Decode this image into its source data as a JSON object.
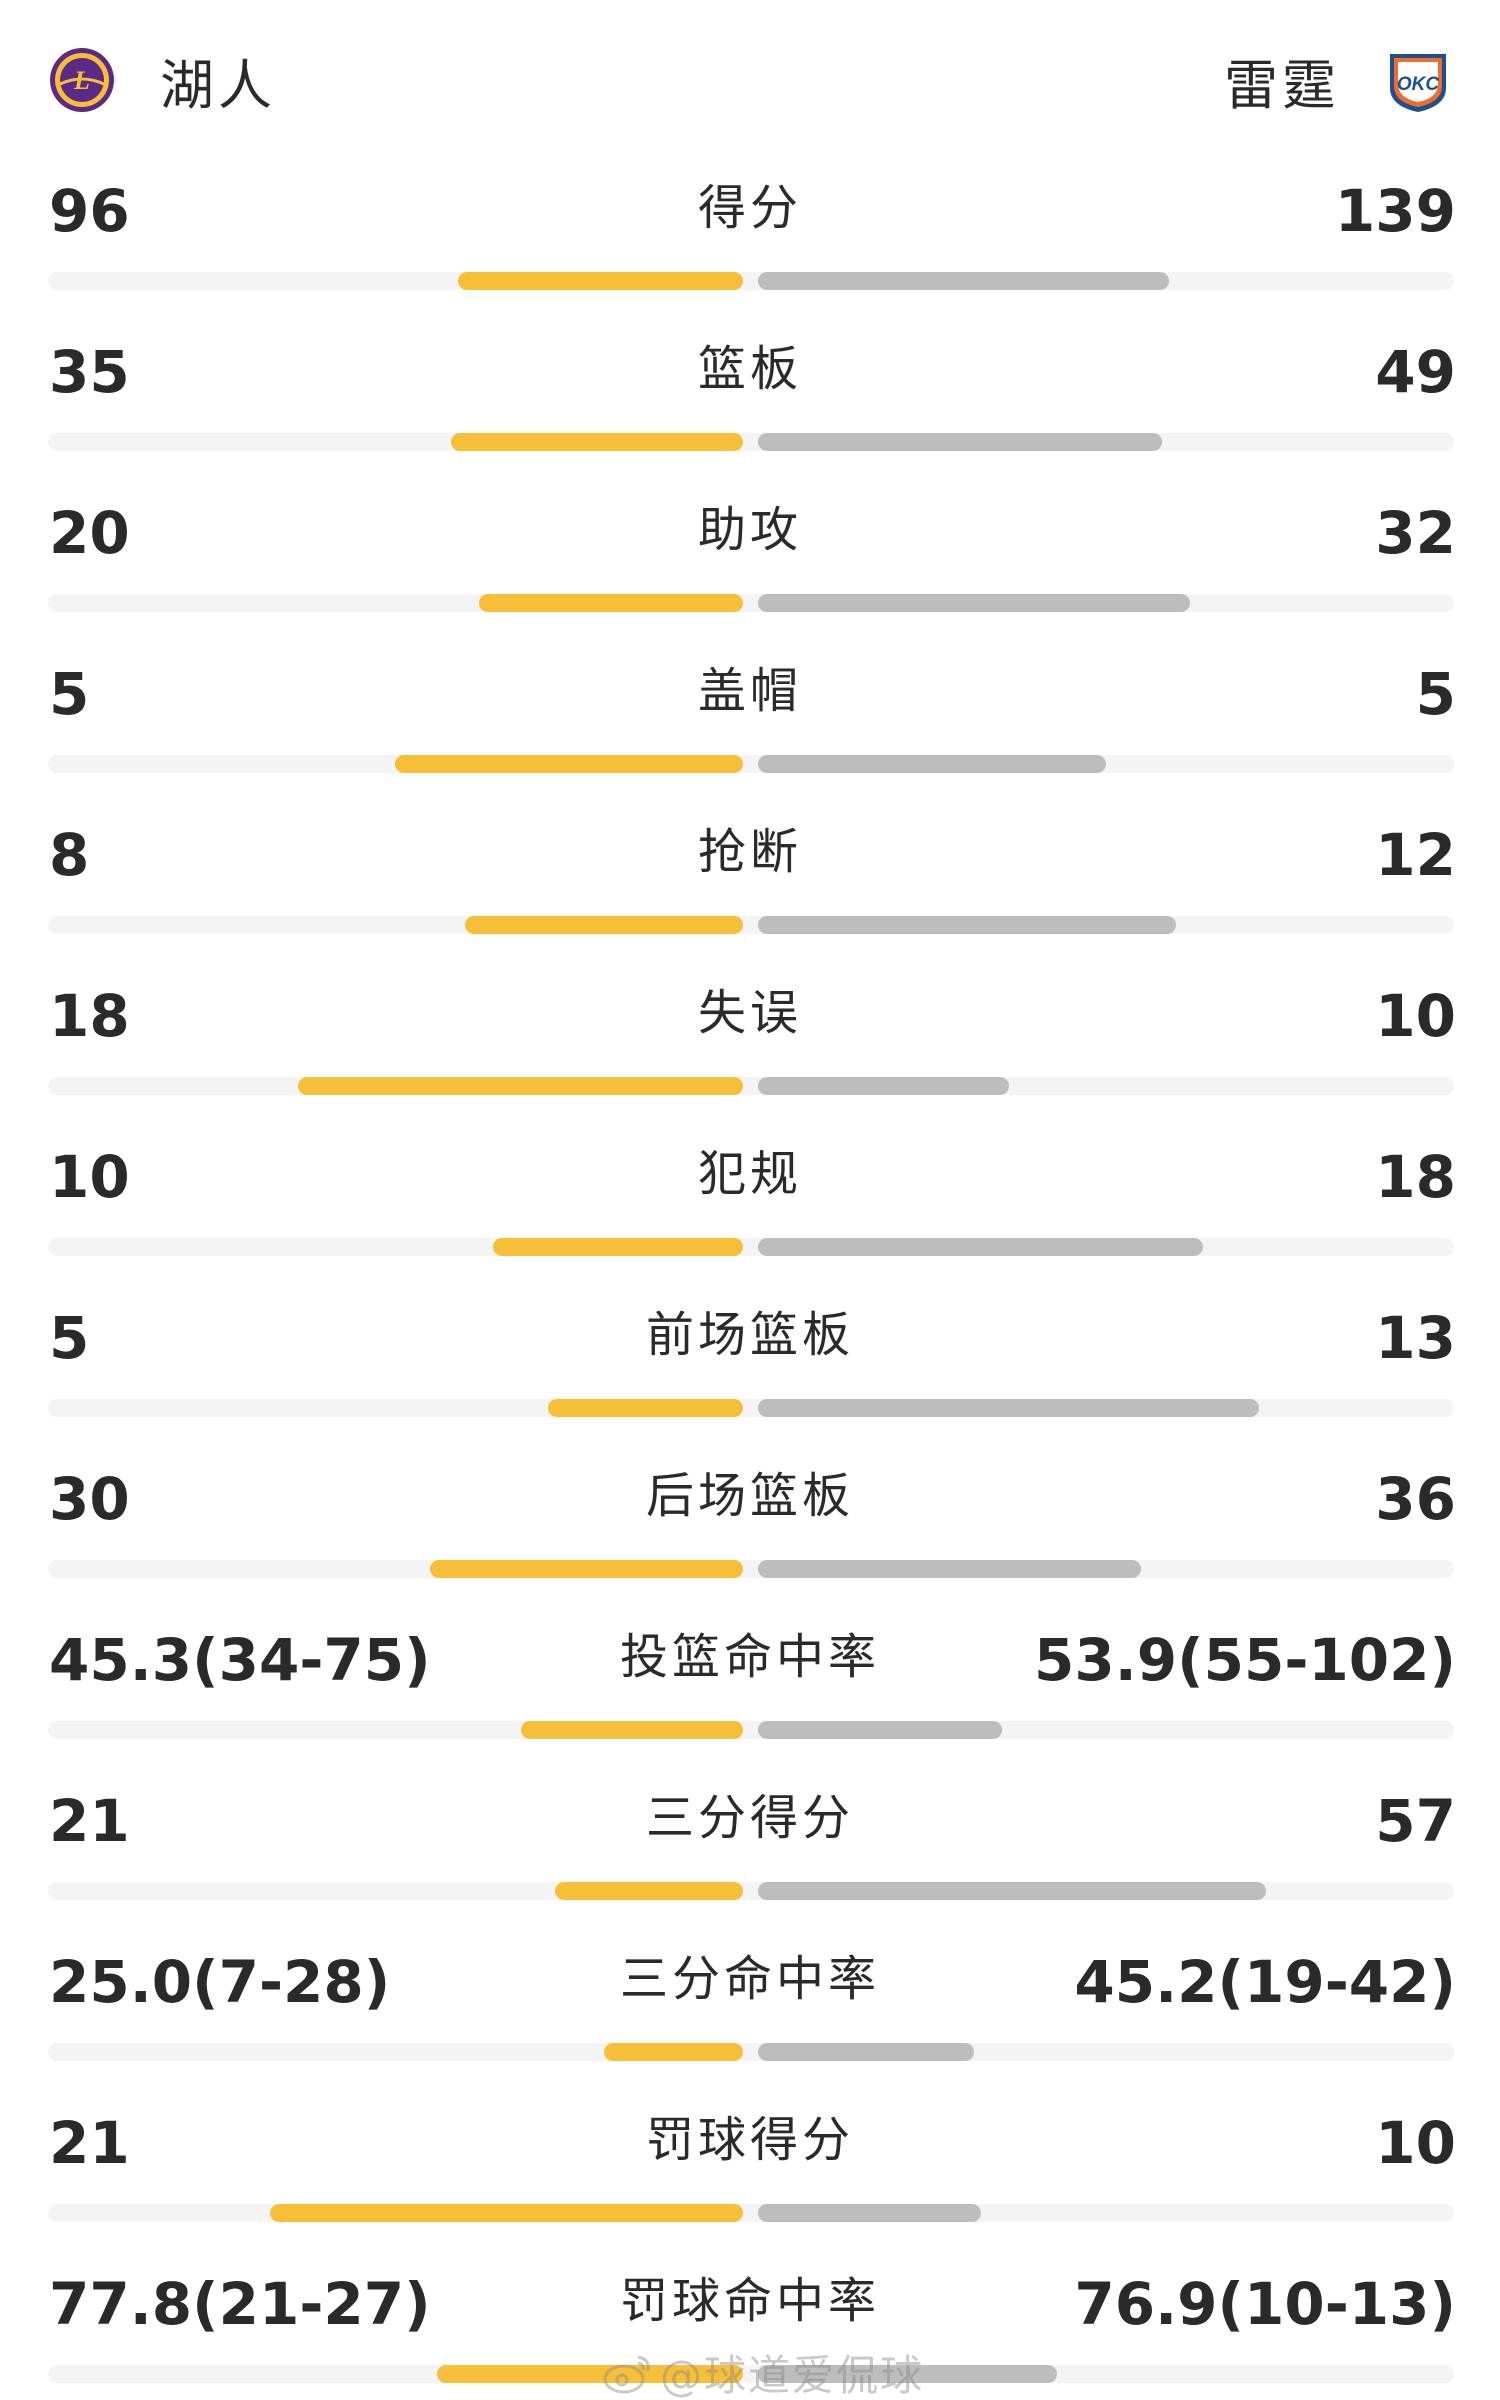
{
  "header": {
    "left_team": {
      "name": "湖人",
      "logo_icon": "lakers-logo-icon"
    },
    "right_team": {
      "name": "雷霆",
      "logo_icon": "okc-logo-icon"
    }
  },
  "colors": {
    "left_bar": "#f7be38",
    "right_bar": "#bdbdbd",
    "track": "#f4f4f4",
    "text": "#2a2a2a"
  },
  "stats": [
    {
      "label": "得分",
      "left": "96",
      "right": "139",
      "left_fill": 0.41,
      "right_fill": 0.59
    },
    {
      "label": "篮板",
      "left": "35",
      "right": "49",
      "left_fill": 0.42,
      "right_fill": 0.58
    },
    {
      "label": "助攻",
      "left": "20",
      "right": "32",
      "left_fill": 0.38,
      "right_fill": 0.62
    },
    {
      "label": "盖帽",
      "left": "5",
      "right": "5",
      "left_fill": 0.5,
      "right_fill": 0.5
    },
    {
      "label": "抢断",
      "left": "8",
      "right": "12",
      "left_fill": 0.4,
      "right_fill": 0.6
    },
    {
      "label": "失误",
      "left": "18",
      "right": "10",
      "left_fill": 0.64,
      "right_fill": 0.36
    },
    {
      "label": "犯规",
      "left": "10",
      "right": "18",
      "left_fill": 0.36,
      "right_fill": 0.64
    },
    {
      "label": "前场篮板",
      "left": "5",
      "right": "13",
      "left_fill": 0.28,
      "right_fill": 0.72
    },
    {
      "label": "后场篮板",
      "left": "30",
      "right": "36",
      "left_fill": 0.45,
      "right_fill": 0.55
    },
    {
      "label": "投篮命中率",
      "left": "45.3(34-75)",
      "right": "53.9(55-102)",
      "left_fill": 0.32,
      "right_fill": 0.35
    },
    {
      "label": "三分得分",
      "left": "21",
      "right": "57",
      "left_fill": 0.27,
      "right_fill": 0.73
    },
    {
      "label": "三分命中率",
      "left": "25.0(7-28)",
      "right": "45.2(19-42)",
      "left_fill": 0.2,
      "right_fill": 0.31
    },
    {
      "label": "罚球得分",
      "left": "21",
      "right": "10",
      "left_fill": 0.68,
      "right_fill": 0.32
    },
    {
      "label": "罚球命中率",
      "left": "77.8(21-27)",
      "right": "76.9(10-13)",
      "left_fill": 0.44,
      "right_fill": 0.43
    }
  ],
  "watermark": {
    "text": "@球道爱侃球",
    "icon": "weibo-icon"
  }
}
